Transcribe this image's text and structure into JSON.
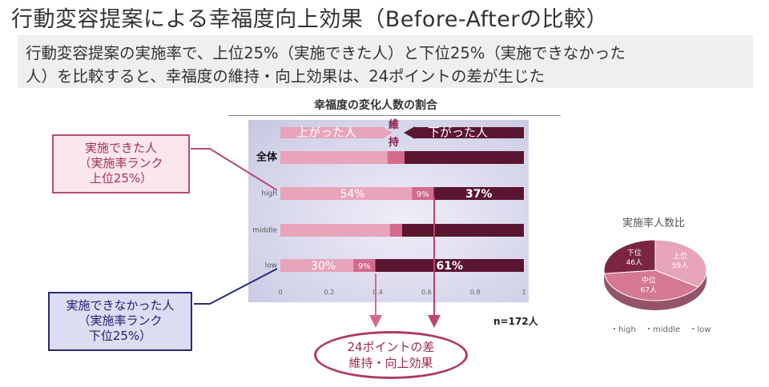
{
  "title": "行動変容提案による幸福度向上効果（Before-Afterの比較）",
  "subtitle_lines": [
    "行動変容提案の実施率で、上位25%（実施できた人）と下位25%（実施できなかった",
    "人）を比較すると、幸福度の維持・向上効果は、24ポイントの差が生じた"
  ],
  "legend_arrows": {
    "up": "上がった人",
    "keep_1": "維",
    "keep_2": "持",
    "down": "下がった人"
  },
  "callouts": {
    "top": [
      "実施できた人",
      "（実施率ランク",
      "上位25%）"
    ],
    "bottom": [
      "実施できなかった人",
      "（実施率ランク",
      "下位25%）"
    ]
  },
  "result": [
    "24ポイントの差",
    "維持・向上効果"
  ],
  "sample": "n=172人",
  "colors": {
    "up": "#e8a4b8",
    "keep": "#d46a8c",
    "down": "#5a1530",
    "accent": "#b03a62",
    "navy": "#2a2a7a"
  },
  "chart_data": [
    {
      "type": "bar",
      "orientation": "horizontal",
      "stacked": true,
      "title": "幸福度の変化人数の割合",
      "categories": [
        "全体",
        "high",
        "middle",
        "low"
      ],
      "series": [
        {
          "name": "上がった人",
          "values": [
            0.44,
            0.54,
            0.45,
            0.3
          ]
        },
        {
          "name": "維持",
          "values": [
            0.07,
            0.09,
            0.05,
            0.09
          ]
        },
        {
          "name": "下がった人",
          "values": [
            0.49,
            0.37,
            0.5,
            0.61
          ]
        }
      ],
      "data_labels": {
        "high": [
          "54%",
          "9%",
          "37%"
        ],
        "low": [
          "30%",
          "9%",
          "61%"
        ]
      },
      "xlim": [
        0,
        1
      ],
      "xticks": [
        "0",
        "0.2",
        "0.4",
        "0.6",
        "0.8",
        "1"
      ]
    },
    {
      "type": "pie",
      "title": "実施率人数比",
      "slices": [
        {
          "name": "上位",
          "value": 59,
          "label": "59人",
          "category": "high",
          "color": "#e8a4b8"
        },
        {
          "name": "中位",
          "value": 67,
          "label": "67人",
          "category": "middle",
          "color": "#d47893"
        },
        {
          "name": "下位",
          "value": 46,
          "label": "46人",
          "category": "low",
          "color": "#7a2640"
        }
      ],
      "legend": [
        "high",
        "middle",
        "low"
      ],
      "legend_position": "bottom"
    }
  ]
}
